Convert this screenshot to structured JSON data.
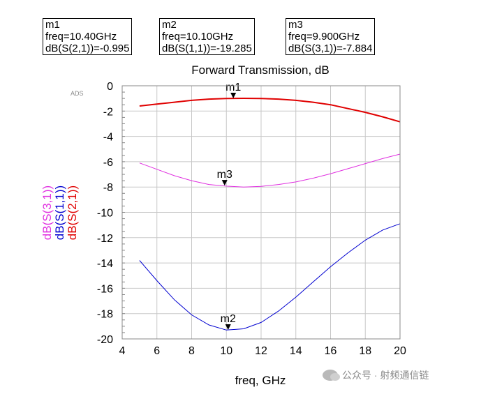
{
  "markers": [
    {
      "name": "m1",
      "freq": "freq=10.40GHz",
      "value": "dB(S(2,1))=-0.995"
    },
    {
      "name": "m2",
      "freq": "freq=10.10GHz",
      "value": "dB(S(1,1))=-19.285"
    },
    {
      "name": "m3",
      "freq": "freq=9.900GHz",
      "value": "dB(S(3,1))=-7.884"
    }
  ],
  "watermark": "公众号 · 射频通信链",
  "chart_data": {
    "type": "line",
    "title": "Forward Transmission, dB",
    "badge": "ADS",
    "xlabel": "freq, GHz",
    "ylabels": [
      "dB(S(3,1))",
      "dB(S(1,1))",
      "dB(S(2,1))"
    ],
    "xlim": [
      4,
      20
    ],
    "ylim": [
      -20,
      0
    ],
    "xticks": [
      4,
      6,
      8,
      10,
      12,
      14,
      16,
      18,
      20
    ],
    "yticks": [
      0,
      -2,
      -4,
      -6,
      -8,
      -10,
      -12,
      -14,
      -16,
      -18,
      -20
    ],
    "grid": true,
    "x": [
      5,
      6,
      7,
      8,
      9,
      10,
      11,
      12,
      13,
      14,
      15,
      16,
      17,
      18,
      19,
      20
    ],
    "series": [
      {
        "name": "dB(S(2,1))",
        "color": "#e00000",
        "values": [
          -1.6,
          -1.45,
          -1.3,
          -1.15,
          -1.05,
          -1.0,
          -0.99,
          -1.0,
          -1.05,
          -1.15,
          -1.3,
          -1.5,
          -1.8,
          -2.1,
          -2.45,
          -2.85
        ]
      },
      {
        "name": "dB(S(3,1))",
        "color": "#e030e0",
        "values": [
          -6.1,
          -6.6,
          -7.1,
          -7.5,
          -7.8,
          -7.93,
          -8.0,
          -7.95,
          -7.8,
          -7.6,
          -7.3,
          -6.95,
          -6.55,
          -6.15,
          -5.75,
          -5.4
        ]
      },
      {
        "name": "dB(S(1,1))",
        "color": "#0000d0",
        "values": [
          -13.8,
          -15.4,
          -16.9,
          -18.1,
          -18.9,
          -19.3,
          -19.2,
          -18.7,
          -17.8,
          -16.7,
          -15.5,
          -14.3,
          -13.2,
          -12.2,
          -11.4,
          -10.9
        ]
      }
    ],
    "marker_points": [
      {
        "label": "m1",
        "x": 10.4,
        "y": -0.995,
        "series": "dB(S(2,1))"
      },
      {
        "label": "m3",
        "x": 9.9,
        "y": -7.884,
        "series": "dB(S(3,1))"
      },
      {
        "label": "m2",
        "x": 10.1,
        "y": -19.285,
        "series": "dB(S(1,1))"
      }
    ]
  }
}
